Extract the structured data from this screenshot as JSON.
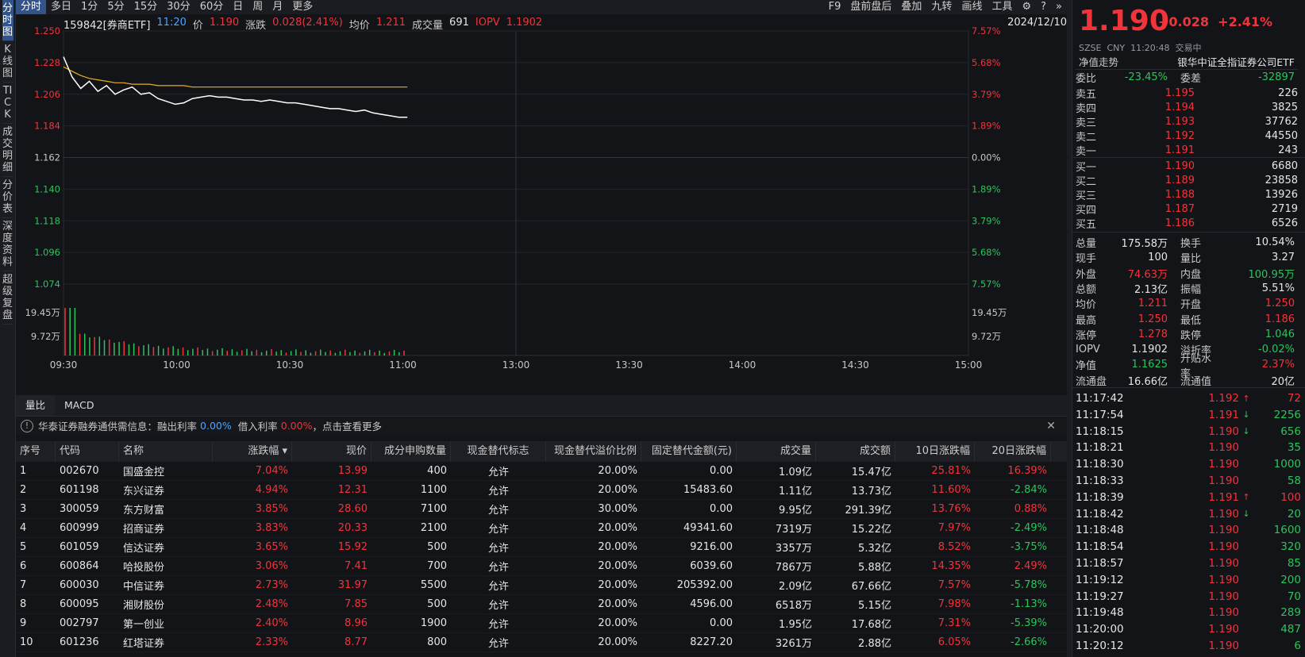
{
  "leftbar": [
    {
      "label": "分时图",
      "active": true
    },
    {
      "label": "K线图"
    },
    {
      "label": "TICK"
    },
    {
      "label": "成交明细"
    },
    {
      "label": "分价表"
    },
    {
      "label": "深度资料"
    },
    {
      "label": "超级复盘"
    }
  ],
  "toolbar": {
    "periods": [
      "分时",
      "多日",
      "1分",
      "5分",
      "15分",
      "30分",
      "60分",
      "日",
      "周",
      "月",
      "更多"
    ],
    "right": [
      "F9",
      "盘前盘后",
      "叠加",
      "九转",
      "画线",
      "工具"
    ]
  },
  "info": {
    "code": "159842[券商ETF]",
    "time": "11:20",
    "price_label": "价",
    "price": "1.190",
    "chg_label": "涨跌",
    "chg": "0.028(2.41%)",
    "avg_label": "均价",
    "avg": "1.211",
    "vol_label": "成交量",
    "vol": "691",
    "iopv_label": "IOPV",
    "iopv": "1.1902",
    "date": "2024/12/10"
  },
  "chart_data": {
    "type": "line",
    "title": "分时图",
    "x_ticks": [
      "09:30",
      "10:00",
      "10:30",
      "11:00",
      "13:00",
      "13:30",
      "14:00",
      "14:30",
      "15:00"
    ],
    "y_left": [
      "1.250",
      "1.228",
      "1.206",
      "1.184",
      "1.162",
      "1.140",
      "1.118",
      "1.096",
      "1.074"
    ],
    "y_right": [
      "7.57%",
      "5.68%",
      "3.79%",
      "1.89%",
      "0.00%",
      "1.89%",
      "3.79%",
      "5.68%",
      "7.57%"
    ],
    "vol_ticks": [
      "19.45万",
      "9.72万"
    ],
    "ylim": [
      1.074,
      1.25
    ],
    "price_series": [
      1.232,
      1.218,
      1.21,
      1.215,
      1.208,
      1.212,
      1.206,
      1.209,
      1.211,
      1.206,
      1.207,
      1.203,
      1.201,
      1.199,
      1.2,
      1.203,
      1.204,
      1.205,
      1.204,
      1.204,
      1.203,
      1.202,
      1.202,
      1.201,
      1.202,
      1.201,
      1.2,
      1.2,
      1.199,
      1.198,
      1.197,
      1.196,
      1.196,
      1.195,
      1.194,
      1.195,
      1.193,
      1.192,
      1.191,
      1.19,
      1.19
    ],
    "avg_series": [
      1.225,
      1.222,
      1.219,
      1.217,
      1.216,
      1.215,
      1.214,
      1.214,
      1.213,
      1.213,
      1.213,
      1.212,
      1.212,
      1.212,
      1.212,
      1.211,
      1.211,
      1.211,
      1.211,
      1.211,
      1.211,
      1.211,
      1.211,
      1.211,
      1.211,
      1.211,
      1.211,
      1.211,
      1.211,
      1.211,
      1.211,
      1.211,
      1.211,
      1.211,
      1.211,
      1.211,
      1.211,
      1.211,
      1.211,
      1.211,
      1.211
    ],
    "price_color": "#ffffff",
    "avg_color": "#e8b020"
  },
  "volbar": [
    "量比",
    "MACD"
  ],
  "notice": {
    "text1": "华泰证券融券通供需信息：融出利率",
    "rate1": "0.00%",
    "text2": "借入利率",
    "rate2": "0.00%",
    "text3": "，点击查看更多"
  },
  "table": {
    "headers": [
      "序号",
      "代码",
      "名称",
      "涨跌幅 ▾",
      "现价",
      "成分申购数量",
      "现金替代标志",
      "现金替代溢价比例",
      "固定替代金额(元)",
      "成交量",
      "成交额",
      "10日涨跌幅",
      "20日涨跌幅"
    ],
    "rows": [
      [
        "1",
        "002670",
        "国盛金控",
        "7.04%",
        "13.99",
        "400",
        "允许",
        "20.00%",
        "0.00",
        "1.09亿",
        "15.47亿",
        "25.81%",
        "16.39%"
      ],
      [
        "2",
        "601198",
        "东兴证券",
        "4.94%",
        "12.31",
        "1100",
        "允许",
        "20.00%",
        "15483.60",
        "1.11亿",
        "13.73亿",
        "11.60%",
        "-2.84%"
      ],
      [
        "3",
        "300059",
        "东方财富",
        "3.85%",
        "28.60",
        "7100",
        "允许",
        "30.00%",
        "0.00",
        "9.95亿",
        "291.39亿",
        "13.76%",
        "0.88%"
      ],
      [
        "4",
        "600999",
        "招商证券",
        "3.83%",
        "20.33",
        "2100",
        "允许",
        "20.00%",
        "49341.60",
        "7319万",
        "15.22亿",
        "7.97%",
        "-2.49%"
      ],
      [
        "5",
        "601059",
        "信达证券",
        "3.65%",
        "15.92",
        "500",
        "允许",
        "20.00%",
        "9216.00",
        "3357万",
        "5.32亿",
        "8.52%",
        "-3.75%"
      ],
      [
        "6",
        "600864",
        "哈投股份",
        "3.06%",
        "7.41",
        "700",
        "允许",
        "20.00%",
        "6039.60",
        "7867万",
        "5.88亿",
        "14.35%",
        "2.49%"
      ],
      [
        "7",
        "600030",
        "中信证券",
        "2.73%",
        "31.97",
        "5500",
        "允许",
        "20.00%",
        "205392.00",
        "2.09亿",
        "67.66亿",
        "7.57%",
        "-5.78%"
      ],
      [
        "8",
        "600095",
        "湘财股份",
        "2.48%",
        "7.85",
        "500",
        "允许",
        "20.00%",
        "4596.00",
        "6518万",
        "5.15亿",
        "7.98%",
        "-1.13%"
      ],
      [
        "9",
        "002797",
        "第一创业",
        "2.40%",
        "8.96",
        "1900",
        "允许",
        "20.00%",
        "0.00",
        "1.95亿",
        "17.68亿",
        "7.31%",
        "-5.39%"
      ],
      [
        "10",
        "601236",
        "红塔证券",
        "2.33%",
        "8.77",
        "800",
        "允许",
        "20.00%",
        "8227.20",
        "3261万",
        "2.88亿",
        "6.05%",
        "-2.66%"
      ]
    ]
  },
  "right": {
    "price": "1.190",
    "change": "+0.028",
    "pct": "+2.41%",
    "market": "SZSE",
    "currency": "CNY",
    "time": "11:20:48",
    "status": "交易中",
    "nav_label": "净值走势",
    "name": "银华中证全指证券公司ETF",
    "weibi": {
      "l1": "委比",
      "v1": "-23.45%",
      "l2": "委差",
      "v2": "-32897"
    },
    "asks": [
      [
        "卖五",
        "1.195",
        "226"
      ],
      [
        "卖四",
        "1.194",
        "3825"
      ],
      [
        "卖三",
        "1.193",
        "37762"
      ],
      [
        "卖二",
        "1.192",
        "44550"
      ],
      [
        "卖一",
        "1.191",
        "243"
      ]
    ],
    "bids": [
      [
        "买一",
        "1.190",
        "6680"
      ],
      [
        "买二",
        "1.189",
        "23858"
      ],
      [
        "买三",
        "1.188",
        "13926"
      ],
      [
        "买四",
        "1.187",
        "2719"
      ],
      [
        "买五",
        "1.186",
        "6526"
      ]
    ],
    "stats": [
      [
        "总量",
        "175.58万",
        "换手",
        "10.54%"
      ],
      [
        "现手",
        "100",
        "量比",
        "3.27"
      ],
      [
        "外盘",
        "74.63万",
        "内盘",
        "100.95万"
      ],
      [
        "总额",
        "2.13亿",
        "振幅",
        "5.51%"
      ],
      [
        "均价",
        "1.211",
        "开盘",
        "1.250"
      ],
      [
        "最高",
        "1.250",
        "最低",
        "1.186"
      ],
      [
        "涨停",
        "1.278",
        "跌停",
        "1.046"
      ],
      [
        "IOPV",
        "1.1902",
        "溢折率",
        "-0.02%"
      ],
      [
        "净值",
        "1.1625",
        "升贴水率",
        "2.37%"
      ],
      [
        "流通盘",
        "16.66亿",
        "流通值",
        "20亿"
      ]
    ],
    "ticks": [
      [
        "11:17:42",
        "1.192",
        "↑",
        "72"
      ],
      [
        "11:17:54",
        "1.191",
        "↓",
        "2256"
      ],
      [
        "11:18:15",
        "1.190",
        "↓",
        "656"
      ],
      [
        "11:18:21",
        "1.190",
        "",
        "35"
      ],
      [
        "11:18:30",
        "1.190",
        "",
        "1000"
      ],
      [
        "11:18:33",
        "1.190",
        "",
        "58"
      ],
      [
        "11:18:39",
        "1.191",
        "↑",
        "100"
      ],
      [
        "11:18:42",
        "1.190",
        "↓",
        "20"
      ],
      [
        "11:18:48",
        "1.190",
        "",
        "1600"
      ],
      [
        "11:18:54",
        "1.190",
        "",
        "320"
      ],
      [
        "11:18:57",
        "1.190",
        "",
        "85"
      ],
      [
        "11:19:12",
        "1.190",
        "",
        "200"
      ],
      [
        "11:19:27",
        "1.190",
        "",
        "70"
      ],
      [
        "11:19:48",
        "1.190",
        "",
        "289"
      ],
      [
        "11:20:00",
        "1.190",
        "",
        "487"
      ],
      [
        "11:20:12",
        "1.190",
        "",
        "6"
      ]
    ]
  }
}
